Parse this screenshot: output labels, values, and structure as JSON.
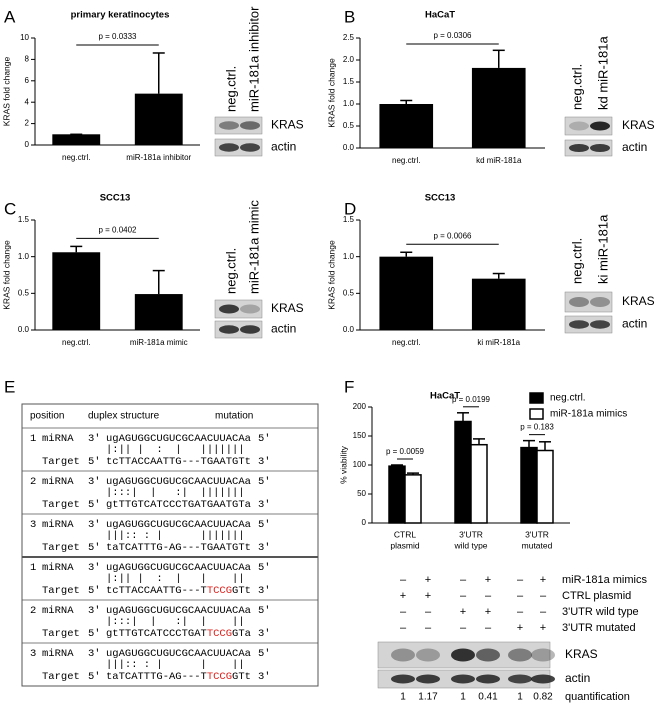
{
  "letters": [
    "A",
    "B",
    "C",
    "D",
    "E",
    "F"
  ],
  "chart_data": [
    {
      "type": "bar",
      "title": "primary keratinocytes",
      "ylabel": "KRAS fold change",
      "categories": [
        "neg.ctrl.",
        "miR-181a inhibitor"
      ],
      "values": [
        1,
        4.8
      ],
      "errors": [
        0,
        3.8
      ],
      "color": "#000000",
      "ylim": [
        0,
        10
      ],
      "yticks": [
        0,
        2,
        4,
        6,
        8,
        10
      ],
      "annotation": "p = 0.0333"
    },
    {
      "type": "bar",
      "title": "HaCaT",
      "ylabel": "KRAS fold change",
      "categories": [
        "neg.ctrl.",
        "kd miR-181a"
      ],
      "values": [
        1.0,
        1.82
      ],
      "errors": [
        0.08,
        0.4
      ],
      "color": "#000000",
      "ylim": [
        0,
        2.5
      ],
      "yticks": [
        {
          "value": 0,
          "label": "0.0"
        },
        0.5,
        {
          "value": 1,
          "label": "1.0"
        },
        1.5,
        {
          "value": 2,
          "label": "2.0"
        },
        2.5
      ],
      "annotation": "p = 0.0306"
    },
    {
      "type": "bar",
      "title": "SCC13",
      "ylabel": "KRAS fold change",
      "categories": [
        "neg.ctrl.",
        "miR-181a mimic"
      ],
      "values": [
        1.06,
        0.49
      ],
      "errors": [
        0.08,
        0.32
      ],
      "color": "#000000",
      "ylim": [
        0,
        1.5
      ],
      "yticks": [
        {
          "value": 0,
          "label": "0.0"
        },
        0.5,
        {
          "value": 1,
          "label": "1.0"
        },
        1.5
      ],
      "annotation": "p = 0.0402"
    },
    {
      "type": "bar",
      "title": "SCC13",
      "ylabel": "KRAS fold change",
      "categories": [
        "neg.ctrl.",
        "ki miR-181a"
      ],
      "values": [
        1.0,
        0.7
      ],
      "errors": [
        0.06,
        0.07
      ],
      "color": "#000000",
      "ylim": [
        0,
        1.5
      ],
      "yticks": [
        {
          "value": 0,
          "label": "0.0"
        },
        0.5,
        {
          "value": 1,
          "label": "1.0"
        },
        1.5
      ],
      "annotation": "p = 0.0066"
    },
    {
      "type": "grouped-bar",
      "title": "HaCaT",
      "ylabel": "% viability",
      "categories": [
        [
          "CTRL",
          "plasmid"
        ],
        [
          "3'UTR",
          "wild type"
        ],
        [
          "3'UTR",
          "mutated"
        ]
      ],
      "series": [
        {
          "name": "neg.ctrl.",
          "color": "#000000",
          "values": [
            98,
            175,
            130
          ],
          "errors": [
            2,
            15,
            12
          ]
        },
        {
          "name": "miR-181a mimics",
          "color": "#ffffff",
          "values": [
            83,
            135,
            125
          ],
          "errors": [
            3,
            10,
            15
          ]
        }
      ],
      "ylim": [
        0,
        200
      ],
      "yticks": [
        0,
        50,
        100,
        150,
        200
      ],
      "annotations": [
        "p = 0.0059",
        "p = 0.0199",
        "p = 0.183"
      ],
      "legend": "upper right"
    }
  ],
  "blots": [
    {
      "lanes": [
        "neg.ctrl.",
        "miR-181a inhibitor"
      ],
      "bands": [
        "KRAS",
        "actin"
      ]
    },
    {
      "lanes": [
        "neg.ctrl.",
        "kd miR-181a"
      ],
      "bands": [
        "KRAS",
        "actin"
      ]
    },
    {
      "lanes": [
        "neg.ctrl.",
        "miR-181a mimic"
      ],
      "bands": [
        "KRAS",
        "actin"
      ]
    },
    {
      "lanes": [
        "neg.ctrl.",
        "ki miR-181a"
      ],
      "bands": [
        "KRAS",
        "actin"
      ]
    }
  ],
  "table": {
    "header": [
      "position",
      "duplex structure",
      "mutation"
    ],
    "labels": {
      "mirna": "miRNA",
      "target": "Target",
      "three": "3'",
      "five": "5'"
    },
    "rows": [
      {
        "position": "1",
        "mirna": "ugAGUGGCUGUCGCAACUUACAa",
        "pairing": "|:|| |  :  |   |||||||",
        "target": "tcTTACCAATTG---TGAATGTt"
      },
      {
        "position": "2",
        "mirna": "ugAGUGGCUGUCGCAACUUACAa",
        "pairing": "|:::|  |   :|  |||||||",
        "target": "gtTTGTCATCCCTGATGAATGTa"
      },
      {
        "position": "3",
        "mirna": "ugAGUGGCUGUCGCAACUUACAa",
        "pairing": "|||:: : |      |||||||",
        "target": "taTCATTTG-AG---TGAATGTt"
      },
      {
        "position": "1",
        "mirna": "ugAGUGGCUGUCGCAACUUACAa",
        "pairing": "|:|| |  :  |   |    ||",
        "target_pre": "tcTTACCAATTG---T",
        "target_mut": "TCCG",
        "target_post": "GTt"
      },
      {
        "position": "2",
        "mirna": "ugAGUGGCUGUCGCAACUUACAa",
        "pairing": "|:::|  |   :|  |    ||",
        "target_pre": "gtTTGTCATCCCTGAT",
        "target_mut": "TCCG",
        "target_post": "GTa"
      },
      {
        "position": "3",
        "mirna": "ugAGUGGCUGUCGCAACUUACAa",
        "pairing": "|||:: : |      |    ||",
        "target_pre": "taTCATTTG-AG---T",
        "target_mut": "TCCG",
        "target_post": "GTt"
      }
    ]
  },
  "f_blot": {
    "rows": [
      {
        "label": "miR-181a mimics",
        "marks": [
          "–",
          "+",
          "–",
          "+",
          "–",
          "+"
        ]
      },
      {
        "label": "CTRL plasmid",
        "marks": [
          "+",
          "+",
          "–",
          "–",
          "–",
          "–"
        ]
      },
      {
        "label": "3'UTR wild type",
        "marks": [
          "–",
          "–",
          "+",
          "+",
          "–",
          "–"
        ]
      },
      {
        "label": "3'UTR mutated",
        "marks": [
          "–",
          "–",
          "–",
          "–",
          "+",
          "+"
        ]
      }
    ],
    "bands": [
      "KRAS",
      "actin"
    ],
    "quant_label": "quantification",
    "quant": [
      1,
      1.17,
      1,
      0.41,
      1,
      0.82
    ]
  }
}
